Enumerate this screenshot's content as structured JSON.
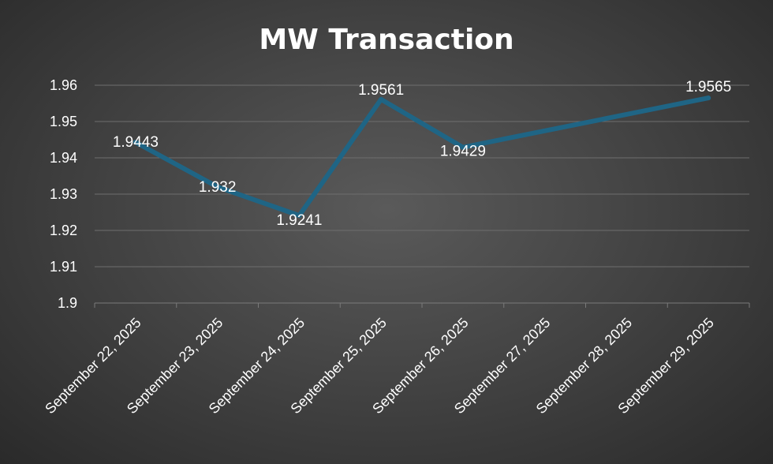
{
  "chart_data": {
    "type": "line",
    "title": "MW Transaction",
    "xlabel": "",
    "ylabel": "",
    "categories": [
      "September 22, 2025",
      "September 23, 2025",
      "September 24, 2025",
      "September 25, 2025",
      "September 26, 2025",
      "September 27, 2025",
      "September 28, 2025",
      "September 29, 2025"
    ],
    "series": [
      {
        "values": [
          1.9443,
          1.932,
          1.9241,
          1.9561,
          1.9429,
          null,
          null,
          1.9565
        ],
        "labels": [
          "1.9443",
          "1.932",
          "1.9241",
          "1.9561",
          "1.9429",
          null,
          null,
          "1.9565"
        ],
        "color": "#1f6585"
      }
    ],
    "ylim": [
      1.9,
      1.96
    ],
    "yticks": [
      "1.9",
      "1.91",
      "1.92",
      "1.93",
      "1.94",
      "1.95",
      "1.96"
    ],
    "grid": true,
    "legend": "none",
    "background": "#404040"
  }
}
